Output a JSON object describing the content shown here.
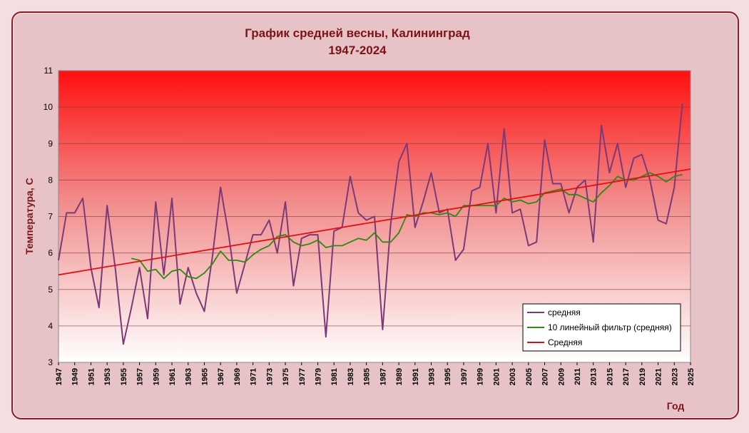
{
  "chart_data": {
    "type": "line",
    "title": "График средней весны, Калининград",
    "subtitle": "1947-2024",
    "xlabel": "Год",
    "ylabel": "Температура, С",
    "ylim": [
      3,
      11
    ],
    "xlim": [
      1947,
      2025
    ],
    "yticks": [
      3,
      4,
      5,
      6,
      7,
      8,
      9,
      10,
      11
    ],
    "xticks": [
      1947,
      1949,
      1951,
      1953,
      1955,
      1957,
      1959,
      1961,
      1963,
      1965,
      1967,
      1969,
      1971,
      1973,
      1975,
      1977,
      1979,
      1981,
      1983,
      1985,
      1987,
      1989,
      1991,
      1993,
      1995,
      1997,
      1999,
      2001,
      2003,
      2005,
      2007,
      2009,
      2011,
      2013,
      2015,
      2017,
      2019,
      2021,
      2023,
      2025
    ],
    "grid": true,
    "legend_position": "bottom-right",
    "series": [
      {
        "name": "средняя",
        "color": "#7a3a78",
        "x": [
          1947,
          1948,
          1949,
          1950,
          1951,
          1952,
          1953,
          1954,
          1955,
          1956,
          1957,
          1958,
          1959,
          1960,
          1961,
          1962,
          1963,
          1964,
          1965,
          1966,
          1967,
          1968,
          1969,
          1970,
          1971,
          1972,
          1973,
          1974,
          1975,
          1976,
          1977,
          1978,
          1979,
          1980,
          1981,
          1982,
          1983,
          1984,
          1985,
          1986,
          1987,
          1988,
          1989,
          1990,
          1991,
          1992,
          1993,
          1994,
          1995,
          1996,
          1997,
          1998,
          1999,
          2000,
          2001,
          2002,
          2003,
          2004,
          2005,
          2006,
          2007,
          2008,
          2009,
          2010,
          2011,
          2012,
          2013,
          2014,
          2015,
          2016,
          2017,
          2018,
          2019,
          2020,
          2021,
          2022,
          2023,
          2024
        ],
        "values": [
          5.8,
          7.1,
          7.1,
          7.5,
          5.6,
          4.5,
          7.3,
          5.6,
          3.5,
          4.5,
          5.6,
          4.2,
          7.4,
          5.4,
          7.5,
          4.6,
          5.6,
          4.9,
          4.4,
          5.9,
          7.8,
          6.5,
          4.9,
          5.7,
          6.5,
          6.5,
          6.9,
          6.0,
          7.4,
          5.1,
          6.4,
          6.5,
          6.5,
          3.7,
          6.6,
          6.7,
          8.1,
          7.1,
          6.9,
          7.0,
          3.9,
          6.8,
          8.5,
          9.0,
          6.7,
          7.4,
          8.2,
          7.1,
          7.2,
          5.8,
          6.1,
          7.7,
          7.8,
          9.0,
          7.1,
          9.4,
          7.1,
          7.2,
          6.2,
          6.3,
          9.1,
          7.9,
          7.9,
          7.1,
          7.8,
          8.0,
          6.3,
          9.5,
          8.2,
          9.0,
          7.8,
          8.6,
          8.7,
          8.0,
          6.9,
          6.8,
          7.8,
          10.1
        ]
      },
      {
        "name": "10 линейный фильтр (средняя)",
        "color": "#2a8a12",
        "x": [
          1956,
          1957,
          1958,
          1959,
          1960,
          1961,
          1962,
          1963,
          1964,
          1965,
          1966,
          1967,
          1968,
          1969,
          1970,
          1971,
          1972,
          1973,
          1974,
          1975,
          1976,
          1977,
          1978,
          1979,
          1980,
          1981,
          1982,
          1983,
          1984,
          1985,
          1986,
          1987,
          1988,
          1989,
          1990,
          1991,
          1992,
          1993,
          1994,
          1995,
          1996,
          1997,
          1998,
          1999,
          2000,
          2001,
          2002,
          2003,
          2004,
          2005,
          2006,
          2007,
          2008,
          2009,
          2010,
          2011,
          2012,
          2013,
          2014,
          2015,
          2016,
          2017,
          2018,
          2019,
          2020,
          2021,
          2022,
          2023,
          2024
        ],
        "values": [
          5.85,
          5.8,
          5.5,
          5.55,
          5.3,
          5.5,
          5.55,
          5.35,
          5.3,
          5.45,
          5.7,
          6.05,
          5.8,
          5.8,
          5.75,
          5.95,
          6.1,
          6.2,
          6.45,
          6.5,
          6.3,
          6.2,
          6.25,
          6.35,
          6.15,
          6.2,
          6.2,
          6.3,
          6.4,
          6.35,
          6.55,
          6.3,
          6.3,
          6.55,
          7.05,
          7.0,
          7.1,
          7.1,
          7.05,
          7.1,
          7.0,
          7.3,
          7.3,
          7.3,
          7.3,
          7.3,
          7.5,
          7.4,
          7.45,
          7.35,
          7.4,
          7.65,
          7.7,
          7.75,
          7.6,
          7.6,
          7.5,
          7.4,
          7.65,
          7.85,
          8.1,
          8.0,
          8.0,
          8.1,
          8.2,
          8.1,
          7.95,
          8.1,
          8.15
        ]
      },
      {
        "name": "Средняя",
        "color": "#e21010",
        "x": [
          1947,
          2025
        ],
        "values": [
          5.4,
          8.3
        ]
      }
    ]
  }
}
